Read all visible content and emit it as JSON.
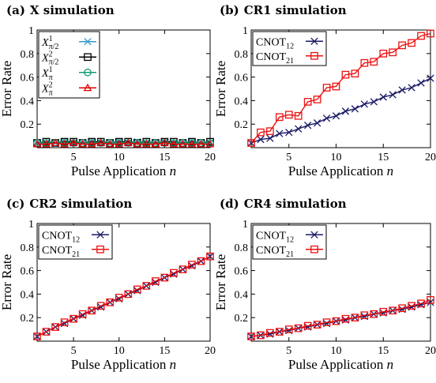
{
  "chart_data": [
    {
      "type": "line",
      "panel_label": "(a)",
      "title": "X simulation",
      "xlabel": "Pulse Application",
      "xlabel_var": "n",
      "ylabel": "Error Rate",
      "xlim": [
        1,
        20
      ],
      "ylim": [
        0,
        1
      ],
      "xticks": [
        5,
        10,
        15,
        20
      ],
      "yticks": [
        0.2,
        0.4,
        0.6,
        0.8,
        1
      ],
      "x": [
        1,
        2,
        3,
        4,
        5,
        6,
        7,
        8,
        9,
        10,
        11,
        12,
        13,
        14,
        15,
        16,
        17,
        18,
        19,
        20
      ],
      "legend_position": "top-left",
      "series": [
        {
          "name": "X",
          "sup": "1",
          "sub": "π/2",
          "color": "#3399cc",
          "marker": "x",
          "values": [
            0.04,
            0.04,
            0.04,
            0.05,
            0.04,
            0.04,
            0.05,
            0.04,
            0.04,
            0.05,
            0.04,
            0.05,
            0.04,
            0.04,
            0.05,
            0.04,
            0.04,
            0.05,
            0.04,
            0.04
          ]
        },
        {
          "name": "X",
          "sup": "2",
          "sub": "π/2",
          "color": "#000000",
          "marker": "square",
          "values": [
            0.04,
            0.05,
            0.04,
            0.05,
            0.05,
            0.04,
            0.05,
            0.05,
            0.04,
            0.05,
            0.05,
            0.04,
            0.05,
            0.04,
            0.05,
            0.05,
            0.04,
            0.05,
            0.04,
            0.05
          ]
        },
        {
          "name": "X",
          "sup": "1",
          "sub": "π",
          "color": "#119977",
          "marker": "circle",
          "values": [
            0.04,
            0.04,
            0.04,
            0.04,
            0.04,
            0.04,
            0.04,
            0.04,
            0.04,
            0.04,
            0.04,
            0.04,
            0.04,
            0.04,
            0.04,
            0.04,
            0.04,
            0.04,
            0.04,
            0.04
          ]
        },
        {
          "name": "X",
          "sup": "2",
          "sub": "π",
          "color": "#dd0000",
          "marker": "triangle",
          "values": [
            0.03,
            0.03,
            0.04,
            0.03,
            0.04,
            0.03,
            0.03,
            0.04,
            0.03,
            0.03,
            0.04,
            0.03,
            0.03,
            0.03,
            0.04,
            0.03,
            0.03,
            0.03,
            0.03,
            0.03
          ]
        }
      ]
    },
    {
      "type": "line",
      "panel_label": "(b)",
      "title": "CR1 simulation",
      "xlabel": "Pulse Application",
      "xlabel_var": "n",
      "ylabel": "Error Rate",
      "xlim": [
        1,
        20
      ],
      "ylim": [
        0,
        1
      ],
      "xticks": [
        5,
        10,
        15,
        20
      ],
      "yticks": [
        0.2,
        0.4,
        0.6,
        0.8,
        1
      ],
      "x": [
        1,
        2,
        3,
        4,
        5,
        6,
        7,
        8,
        9,
        10,
        11,
        12,
        13,
        14,
        15,
        16,
        17,
        18,
        19,
        20
      ],
      "legend_position": "top-left",
      "series": [
        {
          "name": "CNOT",
          "sub": "12",
          "color": "#1a1a66",
          "marker": "x",
          "values": [
            0.04,
            0.07,
            0.08,
            0.12,
            0.13,
            0.16,
            0.19,
            0.21,
            0.25,
            0.27,
            0.31,
            0.33,
            0.37,
            0.39,
            0.43,
            0.45,
            0.49,
            0.51,
            0.55,
            0.59
          ]
        },
        {
          "name": "CNOT",
          "sub": "21",
          "color": "#ee1111",
          "marker": "square",
          "values": [
            0.04,
            0.13,
            0.14,
            0.26,
            0.28,
            0.27,
            0.39,
            0.41,
            0.51,
            0.52,
            0.62,
            0.63,
            0.72,
            0.73,
            0.8,
            0.81,
            0.87,
            0.89,
            0.95,
            0.97
          ]
        }
      ]
    },
    {
      "type": "line",
      "panel_label": "(c)",
      "title": "CR2 simulation",
      "xlabel": "Pulse Application",
      "xlabel_var": "n",
      "ylabel": "Error Rate",
      "xlim": [
        1,
        20
      ],
      "ylim": [
        0,
        1
      ],
      "xticks": [
        5,
        10,
        15,
        20
      ],
      "yticks": [
        0.2,
        0.4,
        0.6,
        0.8,
        1
      ],
      "x": [
        1,
        2,
        3,
        4,
        5,
        6,
        7,
        8,
        9,
        10,
        11,
        12,
        13,
        14,
        15,
        16,
        17,
        18,
        19,
        20
      ],
      "legend_position": "top-left",
      "series": [
        {
          "name": "CNOT",
          "sub": "12",
          "color": "#1a1a66",
          "marker": "x",
          "values": [
            0.04,
            0.08,
            0.12,
            0.15,
            0.19,
            0.22,
            0.26,
            0.29,
            0.33,
            0.36,
            0.4,
            0.43,
            0.47,
            0.5,
            0.54,
            0.57,
            0.61,
            0.64,
            0.68,
            0.72
          ]
        },
        {
          "name": "CNOT",
          "sub": "21",
          "color": "#ee1111",
          "marker": "square",
          "values": [
            0.04,
            0.08,
            0.12,
            0.16,
            0.19,
            0.23,
            0.26,
            0.3,
            0.33,
            0.37,
            0.4,
            0.44,
            0.47,
            0.51,
            0.54,
            0.58,
            0.61,
            0.65,
            0.68,
            0.72
          ]
        }
      ]
    },
    {
      "type": "line",
      "panel_label": "(d)",
      "title": "CR4 simulation",
      "xlabel": "Pulse Application",
      "xlabel_var": "n",
      "ylabel": "Error Rate",
      "xlim": [
        1,
        20
      ],
      "ylim": [
        0,
        1
      ],
      "xticks": [
        5,
        10,
        15,
        20
      ],
      "yticks": [
        0.2,
        0.4,
        0.6,
        0.8,
        1
      ],
      "x": [
        1,
        2,
        3,
        4,
        5,
        6,
        7,
        8,
        9,
        10,
        11,
        12,
        13,
        14,
        15,
        16,
        17,
        18,
        19,
        20
      ],
      "legend_position": "top-left",
      "series": [
        {
          "name": "CNOT",
          "sub": "12",
          "color": "#1a1a66",
          "marker": "x",
          "values": [
            0.04,
            0.05,
            0.06,
            0.08,
            0.09,
            0.11,
            0.12,
            0.14,
            0.15,
            0.17,
            0.18,
            0.2,
            0.21,
            0.23,
            0.24,
            0.26,
            0.27,
            0.29,
            0.31,
            0.33
          ]
        },
        {
          "name": "CNOT",
          "sub": "21",
          "color": "#ee1111",
          "marker": "square",
          "values": [
            0.04,
            0.05,
            0.07,
            0.08,
            0.1,
            0.11,
            0.13,
            0.14,
            0.16,
            0.17,
            0.19,
            0.2,
            0.22,
            0.23,
            0.25,
            0.26,
            0.28,
            0.3,
            0.32,
            0.35
          ]
        }
      ]
    }
  ]
}
